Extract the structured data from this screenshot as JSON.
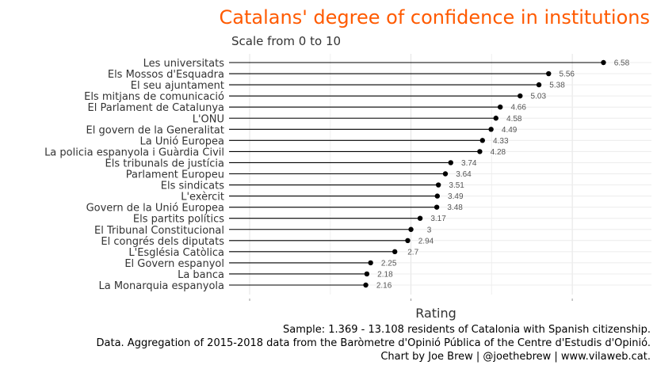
{
  "chart_data": {
    "type": "lollipop",
    "title": "Catalans' degree of confidence in institutions",
    "subtitle": "Scale from 0 to 10",
    "xlabel": "Rating",
    "ylabel": "",
    "grid": true,
    "colors": {
      "title": "#ff5a00",
      "point": "#000000",
      "segment": "#000000",
      "label": "#555555"
    },
    "categories": [
      "Les universitats",
      "Els Mossos d'Esquadra",
      "El seu ajuntament",
      "Els mitjans de comunicació",
      "El Parlament de Catalunya",
      "L'ONU",
      "El govern de la Generalitat",
      "La Unió Europea",
      "La policia espanyola i Guàrdia Civil",
      "Els tribunals de justícia",
      "Parlament Europeu",
      "Els sindicats",
      "L'exèrcit",
      "Govern de la Unió Europea",
      "Els partits polítics",
      "El Tribunal Constitucional",
      "El congrés dels diputats",
      "L'Església Catòlica",
      "El Govern espanyol",
      "La banca",
      "La Monarquia espanyola"
    ],
    "values": [
      6.58,
      5.56,
      5.38,
      5.03,
      4.66,
      4.58,
      4.49,
      4.33,
      4.28,
      3.74,
      3.64,
      3.51,
      3.49,
      3.48,
      3.17,
      3,
      2.94,
      2.7,
      2.25,
      2.18,
      2.16
    ],
    "value_labels": [
      "6.58",
      "5.56",
      "5.38",
      "5.03",
      "4.66",
      "4.58",
      "4.49",
      "4.33",
      "4.28",
      "3.74",
      "3.64",
      "3.51",
      "3.49",
      "3.48",
      "3.17",
      "3",
      "2.94",
      "2.7",
      "2.25",
      "2.18",
      "2.16"
    ],
    "captions": [
      "Sample: 1.369 - 13.108 residents of Catalonia with Spanish citizenship.",
      "Data. Aggregation of 2015-2018 data from the Baròmetre d'Opinió Pública of the Centre d'Estudis d'Opinió.",
      "Chart by Joe Brew | @joethebrew | www.vilaweb.cat."
    ]
  }
}
